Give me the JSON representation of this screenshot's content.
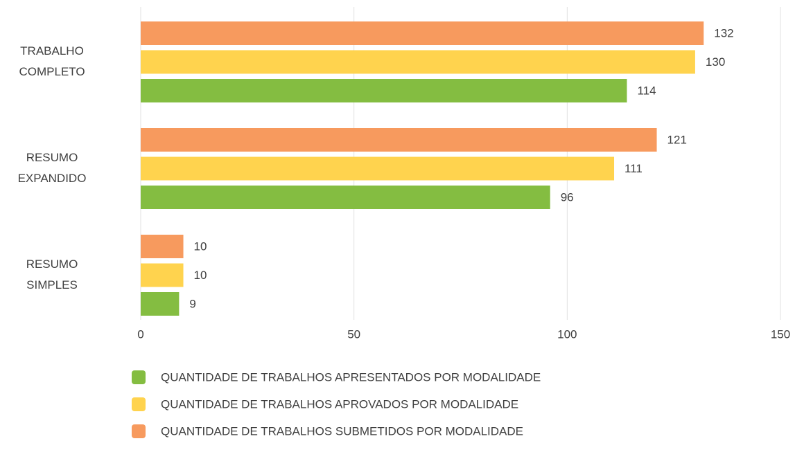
{
  "chart_data": {
    "type": "bar",
    "orientation": "horizontal",
    "categories": [
      "TRABALHO COMPLETO",
      "RESUMO EXPANDIDO",
      "RESUMO SIMPLES"
    ],
    "series": [
      {
        "name": "QUANTIDADE DE TRABALHOS APRESENTADOS POR MODALIDADE",
        "color": "#84bd41",
        "values": [
          114,
          96,
          9
        ]
      },
      {
        "name": "QUANTIDADE DE TRABALHOS APROVADOS POR MODALIDADE",
        "color": "#ffd34e",
        "values": [
          130,
          111,
          10
        ]
      },
      {
        "name": "QUANTIDADE DE TRABALHOS SUBMETIDOS POR MODALIDADE",
        "color": "#f79a5e",
        "values": [
          132,
          121,
          10
        ]
      }
    ],
    "xlim": [
      0,
      150
    ],
    "xticks": [
      0,
      50,
      100,
      150
    ],
    "grid": true
  }
}
